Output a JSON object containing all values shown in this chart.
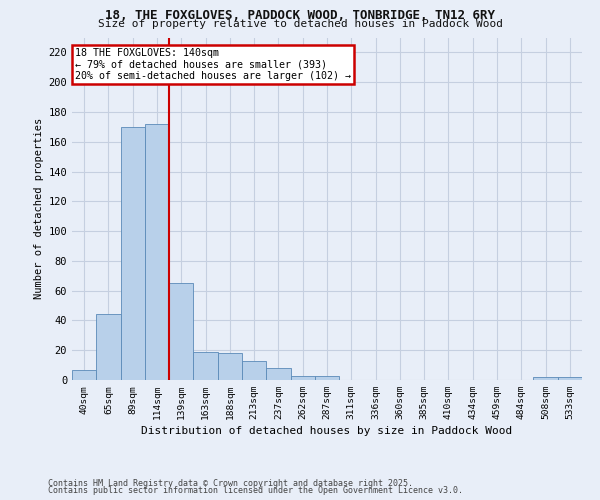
{
  "title_line1": "18, THE FOXGLOVES, PADDOCK WOOD, TONBRIDGE, TN12 6RY",
  "title_line2": "Size of property relative to detached houses in Paddock Wood",
  "xlabel": "Distribution of detached houses by size in Paddock Wood",
  "ylabel": "Number of detached properties",
  "categories": [
    "40sqm",
    "65sqm",
    "89sqm",
    "114sqm",
    "139sqm",
    "163sqm",
    "188sqm",
    "213sqm",
    "237sqm",
    "262sqm",
    "287sqm",
    "311sqm",
    "336sqm",
    "360sqm",
    "385sqm",
    "410sqm",
    "434sqm",
    "459sqm",
    "484sqm",
    "508sqm",
    "533sqm"
  ],
  "values": [
    7,
    44,
    170,
    172,
    65,
    19,
    18,
    13,
    8,
    3,
    3,
    0,
    0,
    0,
    0,
    0,
    0,
    0,
    0,
    2,
    2
  ],
  "bar_color": "#b8d0ea",
  "bar_edge_color": "#5a8ab8",
  "vline_color": "#cc0000",
  "annotation_title": "18 THE FOXGLOVES: 140sqm",
  "annotation_line2": "← 79% of detached houses are smaller (393)",
  "annotation_line3": "20% of semi-detached houses are larger (102) →",
  "annotation_box_color": "#cc0000",
  "ylim": [
    0,
    230
  ],
  "yticks": [
    0,
    20,
    40,
    60,
    80,
    100,
    120,
    140,
    160,
    180,
    200,
    220
  ],
  "footnote1": "Contains HM Land Registry data © Crown copyright and database right 2025.",
  "footnote2": "Contains public sector information licensed under the Open Government Licence v3.0.",
  "bg_color": "#e8eef8",
  "plot_bg_color": "#e8eef8",
  "grid_color": "#c5cfe0"
}
